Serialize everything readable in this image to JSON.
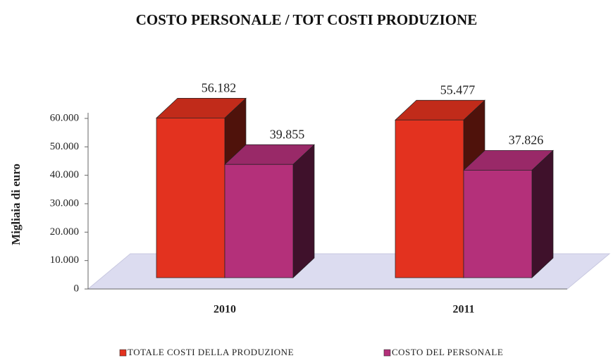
{
  "chart_data": {
    "type": "bar3d",
    "title": "COSTO PERSONALE / TOT COSTI PRODUZIONE",
    "y_label": "Migliaia di euro",
    "categories": [
      "2010",
      "2011"
    ],
    "series": [
      {
        "name": "TOTALE COSTI DELLA PRODUZIONE",
        "color": "#e3321f",
        "values": [
          56182,
          55477
        ],
        "value_labels": [
          "56.182",
          "55.477"
        ]
      },
      {
        "name": "COSTO DEL PERSONALE",
        "color": "#b4307a",
        "values": [
          39855,
          37826
        ],
        "value_labels": [
          "39.855",
          "37.826"
        ]
      }
    ],
    "ylim": [
      0,
      60000
    ],
    "yticks": [
      0,
      {
        "value": 10000,
        "label": "10.000"
      },
      {
        "value": 20000,
        "label": "20.000"
      },
      {
        "value": 30000,
        "label": "30.000"
      },
      {
        "value": 40000,
        "label": "40.000"
      },
      {
        "value": 50000,
        "label": "50.000"
      },
      {
        "value": 60000,
        "label": "60.000"
      }
    ],
    "legend": "bottom"
  }
}
